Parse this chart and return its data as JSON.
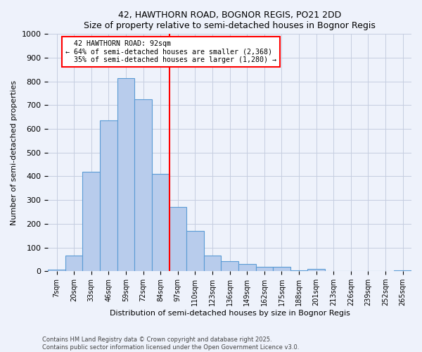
{
  "title1": "42, HAWTHORN ROAD, BOGNOR REGIS, PO21 2DD",
  "title2": "Size of property relative to semi-detached houses in Bognor Regis",
  "xlabel": "Distribution of semi-detached houses by size in Bognor Regis",
  "ylabel": "Number of semi-detached properties",
  "categories": [
    "7sqm",
    "20sqm",
    "33sqm",
    "46sqm",
    "59sqm",
    "72sqm",
    "84sqm",
    "97sqm",
    "110sqm",
    "123sqm",
    "136sqm",
    "149sqm",
    "162sqm",
    "175sqm",
    "188sqm",
    "201sqm",
    "213sqm",
    "226sqm",
    "239sqm",
    "252sqm",
    "265sqm"
  ],
  "values": [
    7,
    65,
    420,
    635,
    815,
    725,
    410,
    270,
    170,
    65,
    42,
    30,
    17,
    17,
    5,
    10,
    0,
    0,
    0,
    0,
    5
  ],
  "bar_color": "#b8ccec",
  "bar_edge_color": "#5b9bd5",
  "property_label": "42 HAWTHORN ROAD: 92sqm",
  "pct_smaller": 64,
  "n_smaller": 2368,
  "pct_larger": 35,
  "n_larger": 1280,
  "vline_color": "red",
  "vline_x_index": 7.0,
  "ylim": [
    0,
    1000
  ],
  "yticks": [
    0,
    100,
    200,
    300,
    400,
    500,
    600,
    700,
    800,
    900,
    1000
  ],
  "footer1": "Contains HM Land Registry data © Crown copyright and database right 2025.",
  "footer2": "Contains public sector information licensed under the Open Government Licence v3.0.",
  "bg_color": "#eef2fb",
  "grid_color": "#c5cde0"
}
